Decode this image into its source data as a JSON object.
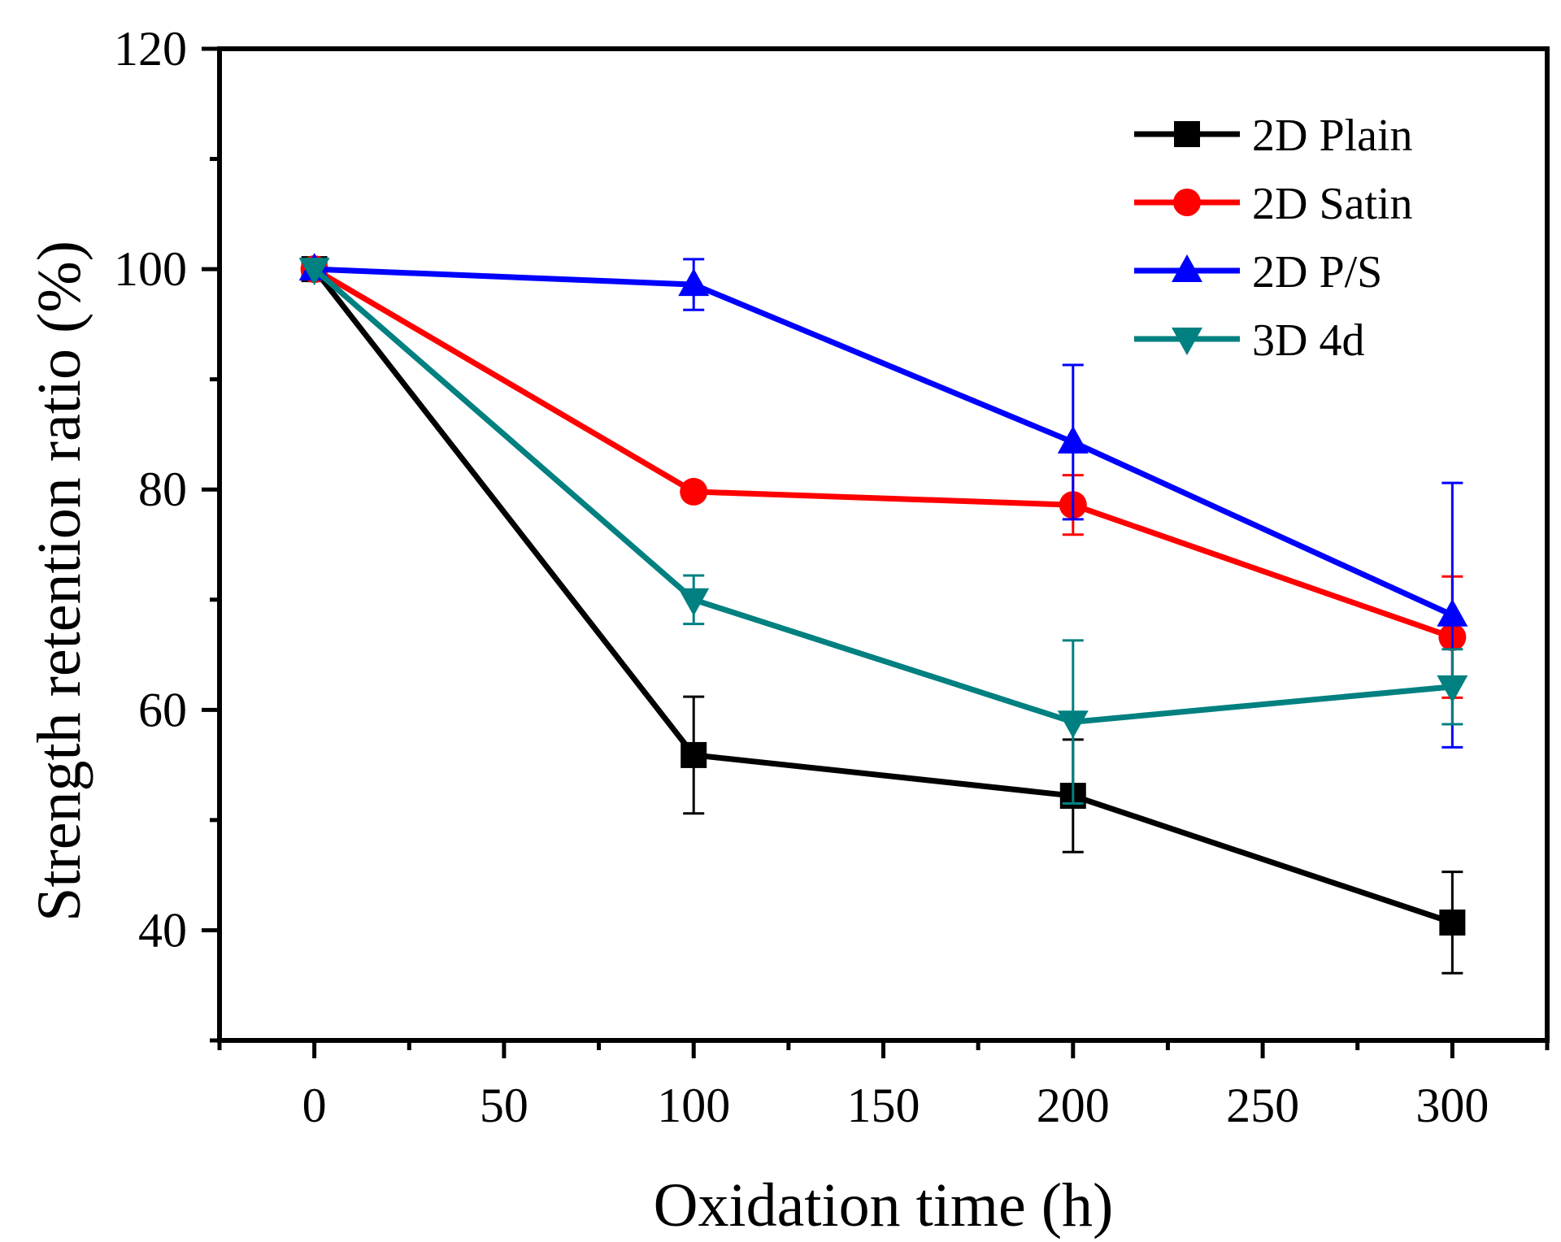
{
  "chart_data": {
    "type": "line",
    "title": "",
    "xlabel": "Oxidation time (h)",
    "ylabel": "Strength retention ratio (%)",
    "xlim": [
      -25,
      325
    ],
    "ylim": [
      30,
      120
    ],
    "xticks": [
      0,
      50,
      100,
      150,
      200,
      250,
      300
    ],
    "yticks": [
      40,
      60,
      80,
      100,
      120
    ],
    "legend_position": "top-right",
    "series": [
      {
        "name": "2D Plain",
        "color": "#000000",
        "marker": "square",
        "x": [
          0,
          100,
          200,
          300
        ],
        "y": [
          100,
          55.9,
          52.2,
          40.7
        ],
        "error": [
          0,
          5.3,
          5.1,
          4.6
        ]
      },
      {
        "name": "2D Satin",
        "color": "#ff0000",
        "marker": "circle",
        "x": [
          0,
          100,
          200,
          300
        ],
        "y": [
          100,
          79.8,
          78.6,
          66.6
        ],
        "error": [
          0,
          0,
          2.7,
          5.5
        ]
      },
      {
        "name": "2D P/S",
        "color": "#0000ff",
        "marker": "triangle-up",
        "x": [
          0,
          100,
          200,
          300
        ],
        "y": [
          100,
          98.6,
          84.3,
          68.6
        ],
        "error": [
          0,
          2.3,
          7.0,
          12.0
        ]
      },
      {
        "name": "3D 4d",
        "color": "#008080",
        "marker": "triangle-down",
        "x": [
          0,
          100,
          200,
          300
        ],
        "y": [
          100,
          70.0,
          58.9,
          62.1
        ],
        "error": [
          0,
          2.2,
          7.4,
          3.4
        ]
      }
    ]
  }
}
